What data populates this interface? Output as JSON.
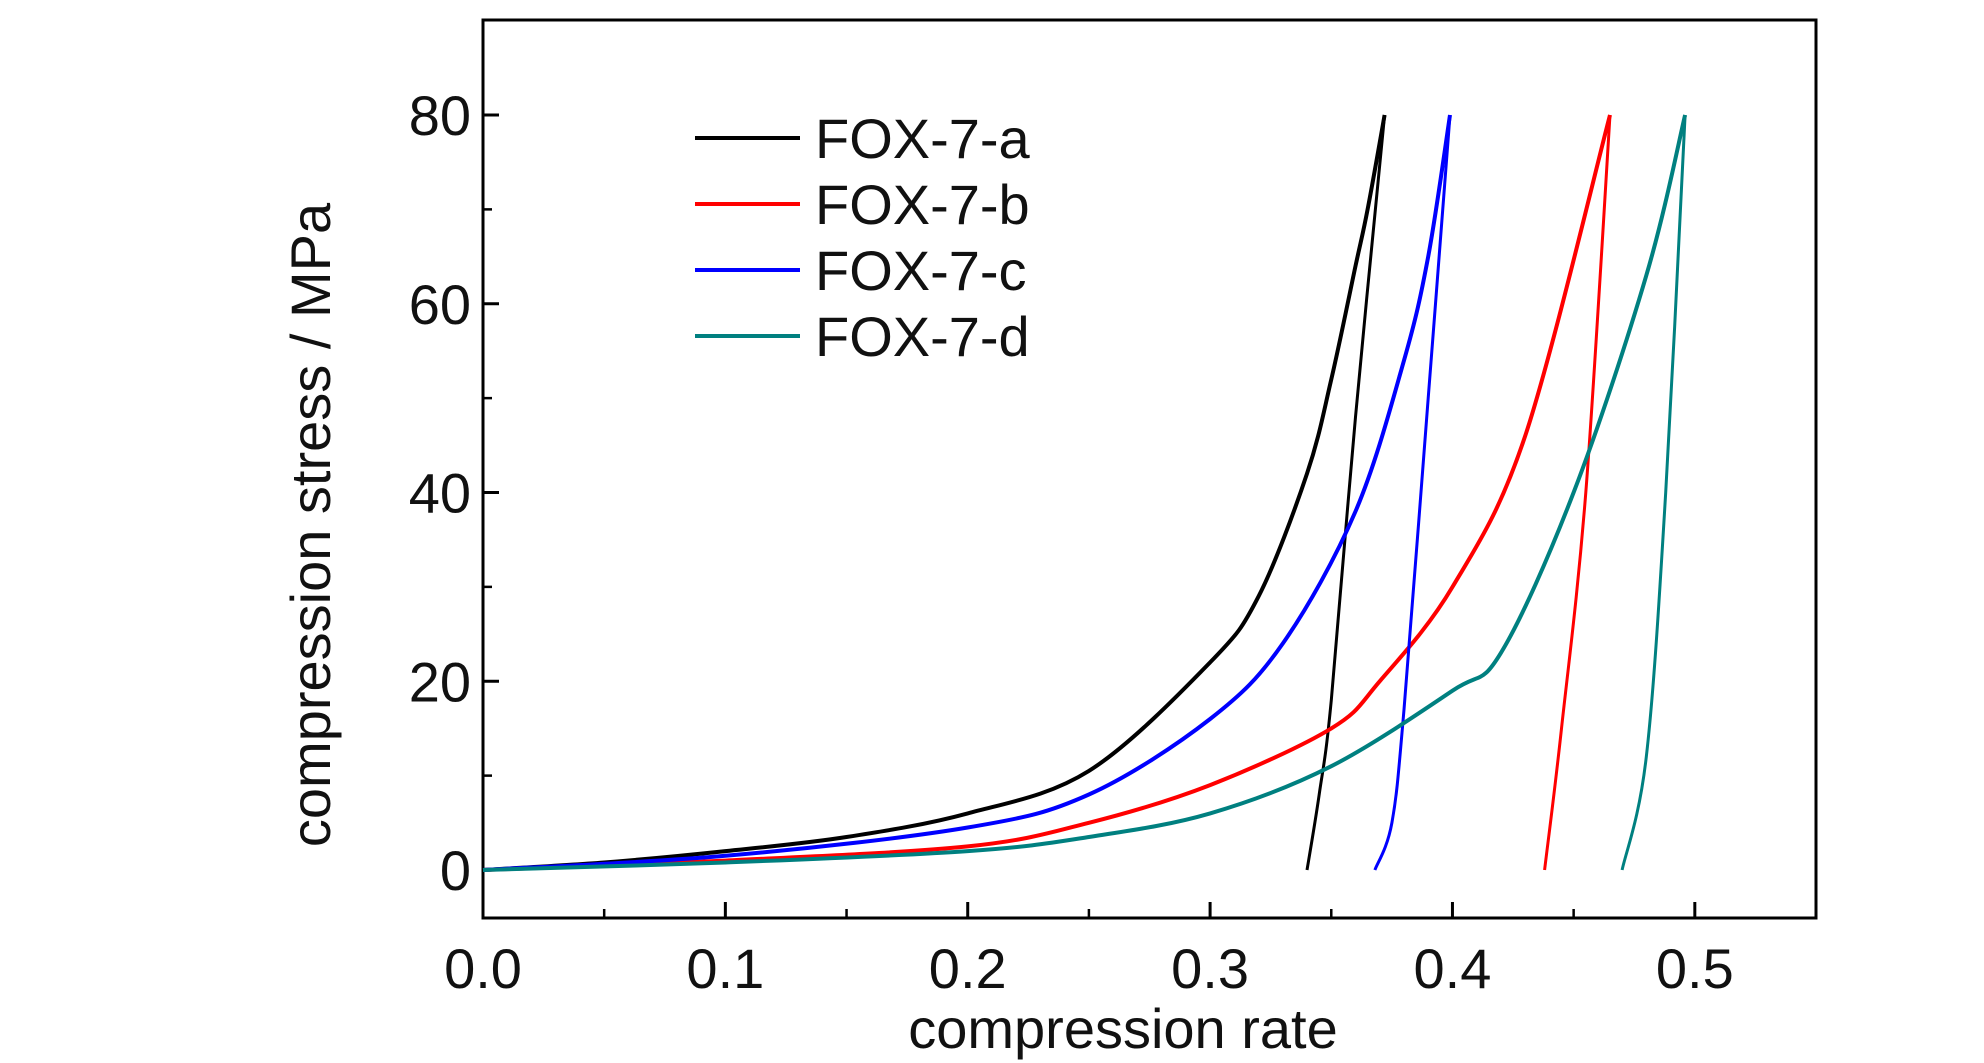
{
  "chart_data": {
    "type": "line",
    "xlabel": "compression rate",
    "ylabel": "compression stress / MPa",
    "xlim": [
      0.0,
      0.55
    ],
    "ylim": [
      -5,
      90
    ],
    "xticks": [
      "0.0",
      "0.1",
      "0.2",
      "0.3",
      "0.4",
      "0.5"
    ],
    "xtick_values": [
      0.0,
      0.1,
      0.2,
      0.3,
      0.4,
      0.5
    ],
    "yticks": [
      "0",
      "20",
      "40",
      "60",
      "80"
    ],
    "ytick_values": [
      0,
      20,
      40,
      60,
      80
    ],
    "grid": false,
    "legend_position": "top-left",
    "series": [
      {
        "name": "FOX-7-a",
        "color": "#000000",
        "loading": [
          [
            0,
            0
          ],
          [
            0.05,
            0.8
          ],
          [
            0.1,
            2
          ],
          [
            0.15,
            3.5
          ],
          [
            0.2,
            6
          ],
          [
            0.25,
            10.5
          ],
          [
            0.3,
            22
          ],
          [
            0.32,
            29
          ],
          [
            0.34,
            42
          ],
          [
            0.35,
            52
          ],
          [
            0.36,
            64
          ],
          [
            0.365,
            70
          ],
          [
            0.372,
            80
          ]
        ],
        "unloading": [
          [
            0.372,
            80
          ],
          [
            0.36,
            48
          ],
          [
            0.35,
            18
          ],
          [
            0.345,
            8
          ],
          [
            0.34,
            0
          ]
        ]
      },
      {
        "name": "FOX-7-b",
        "color": "#ff0000",
        "loading": [
          [
            0,
            0
          ],
          [
            0.1,
            1
          ],
          [
            0.2,
            2.5
          ],
          [
            0.25,
            5
          ],
          [
            0.3,
            9
          ],
          [
            0.35,
            15
          ],
          [
            0.37,
            20
          ],
          [
            0.4,
            30
          ],
          [
            0.43,
            46
          ],
          [
            0.465,
            80
          ]
        ],
        "unloading": [
          [
            0.465,
            80
          ],
          [
            0.455,
            40
          ],
          [
            0.445,
            15
          ],
          [
            0.438,
            0
          ]
        ]
      },
      {
        "name": "FOX-7-c",
        "color": "#0000ff",
        "loading": [
          [
            0,
            0
          ],
          [
            0.1,
            1.5
          ],
          [
            0.2,
            4.5
          ],
          [
            0.25,
            8
          ],
          [
            0.3,
            16
          ],
          [
            0.33,
            24
          ],
          [
            0.36,
            38
          ],
          [
            0.38,
            54
          ],
          [
            0.39,
            65
          ],
          [
            0.399,
            80
          ]
        ],
        "unloading": [
          [
            0.399,
            80
          ],
          [
            0.39,
            50
          ],
          [
            0.38,
            17
          ],
          [
            0.375,
            5
          ],
          [
            0.368,
            0
          ]
        ]
      },
      {
        "name": "FOX-7-d",
        "color": "#008080",
        "loading": [
          [
            0,
            0
          ],
          [
            0.1,
            0.8
          ],
          [
            0.2,
            2
          ],
          [
            0.25,
            3.5
          ],
          [
            0.3,
            6
          ],
          [
            0.35,
            11
          ],
          [
            0.4,
            19
          ],
          [
            0.42,
            23
          ],
          [
            0.45,
            40
          ],
          [
            0.48,
            63
          ],
          [
            0.496,
            80
          ]
        ],
        "unloading": [
          [
            0.496,
            80
          ],
          [
            0.488,
            40
          ],
          [
            0.48,
            12
          ],
          [
            0.47,
            0
          ]
        ]
      }
    ]
  }
}
